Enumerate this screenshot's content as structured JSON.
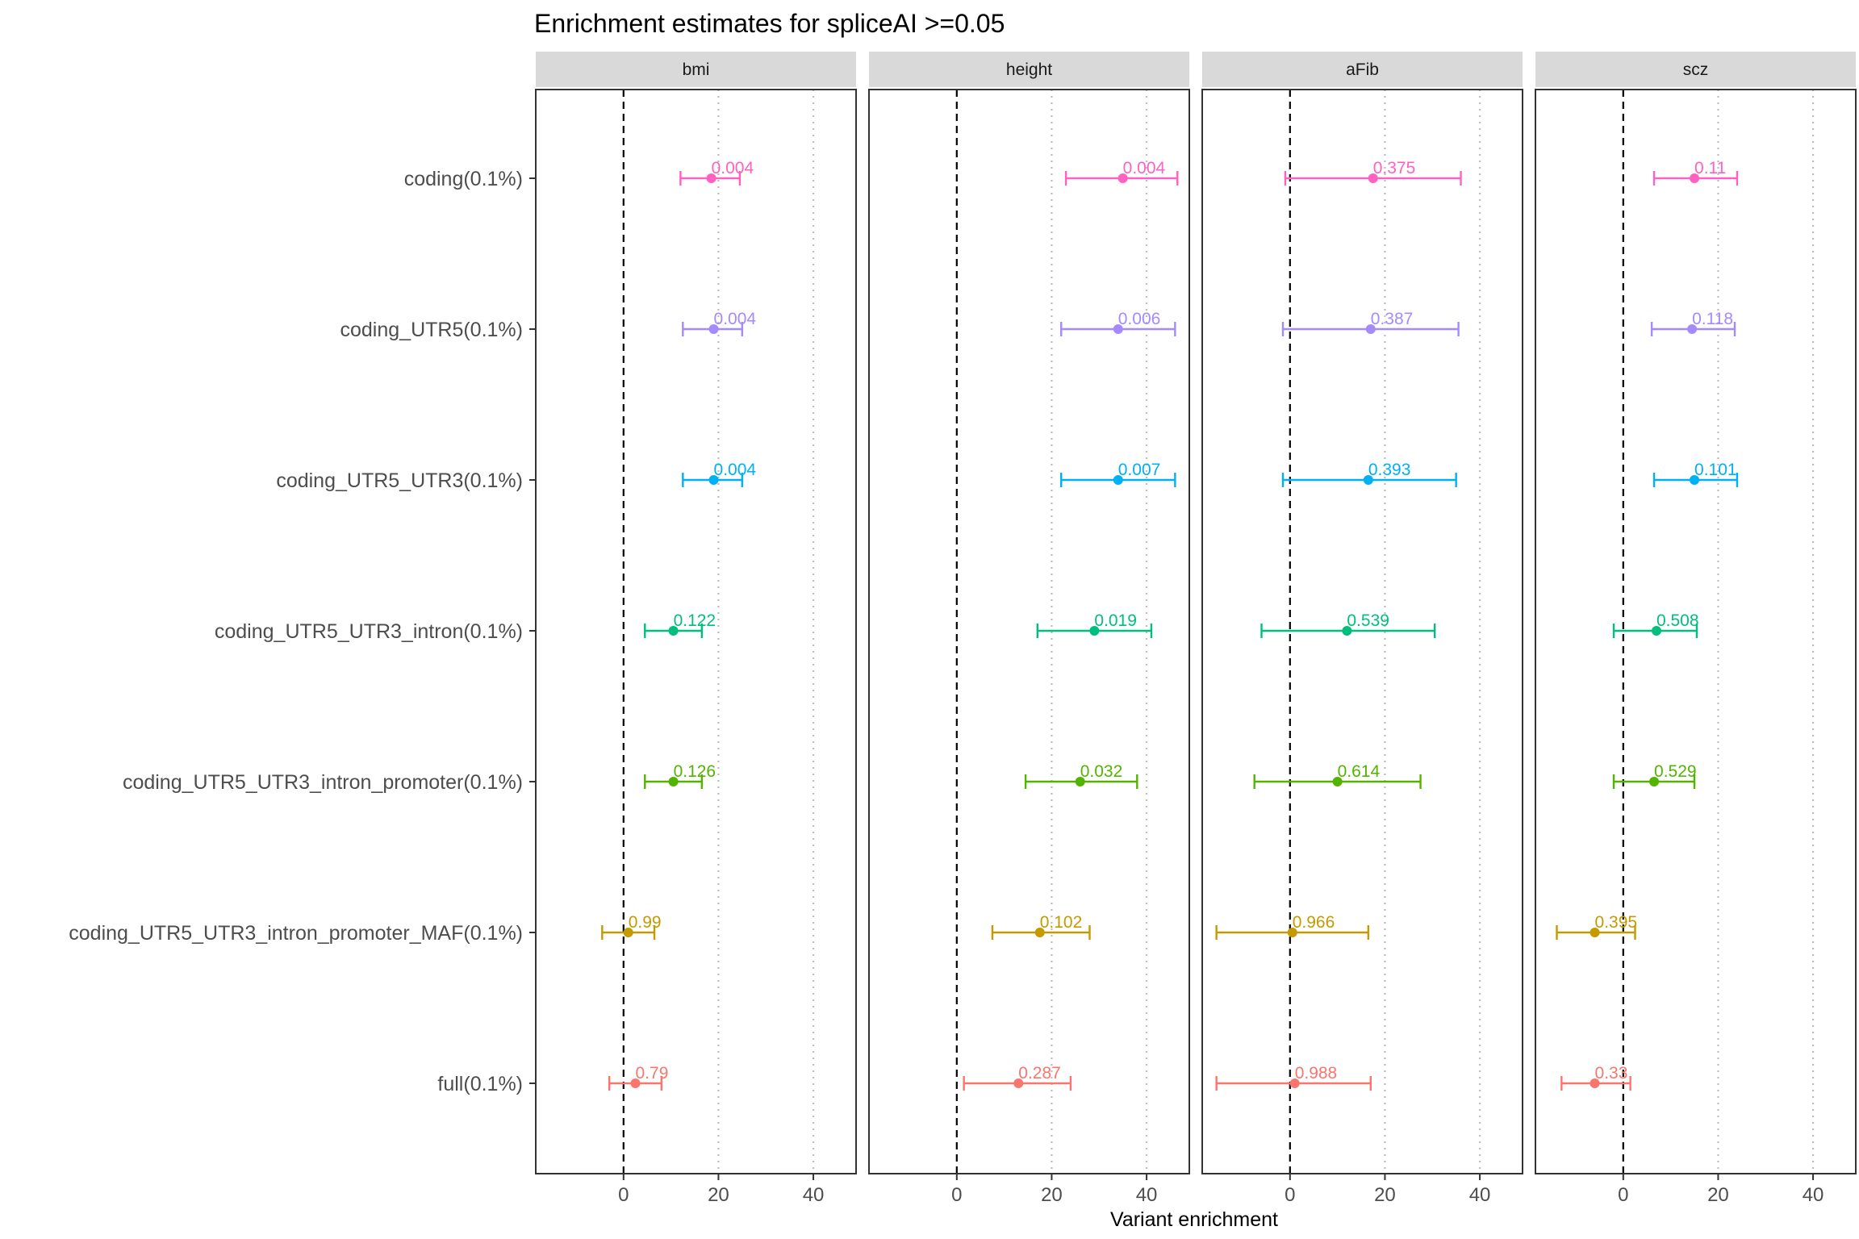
{
  "chart_data": {
    "type": "scatter",
    "title": "Enrichment estimates for spliceAI >=0.05",
    "xlabel": "Variant enrichment",
    "ylabel": "",
    "xlim": [
      -18.5,
      49
    ],
    "xticks": [
      0,
      20,
      40
    ],
    "panels": [
      "bmi",
      "height",
      "aFib",
      "scz"
    ],
    "categories": [
      "coding(0.1%)",
      "coding_UTR5(0.1%)",
      "coding_UTR5_UTR3(0.1%)",
      "coding_UTR5_UTR3_intron(0.1%)",
      "coding_UTR5_UTR3_intron_promoter(0.1%)",
      "coding_UTR5_UTR3_intron_promoter_MAF(0.1%)",
      "full(0.1%)"
    ],
    "colors": [
      "#FF61C3",
      "#A58AFF",
      "#00B0F6",
      "#00BF7D",
      "#53B400",
      "#C49A00",
      "#F8766D"
    ],
    "series": [
      {
        "name": "bmi",
        "estimate": [
          18.5,
          19,
          19,
          10.5,
          10.5,
          1,
          2.5
        ],
        "lower": [
          12,
          12.5,
          12.5,
          4.5,
          4.5,
          -4.5,
          -3
        ],
        "upper": [
          24.5,
          25,
          25,
          16.5,
          16.5,
          6.5,
          8
        ],
        "labels": [
          "0.004",
          "0.004",
          "0.004",
          "0.122",
          "0.126",
          "0.99",
          "0.79"
        ]
      },
      {
        "name": "height",
        "estimate": [
          35,
          34,
          34,
          29,
          26,
          17.5,
          13
        ],
        "lower": [
          23,
          22,
          22,
          17,
          14.5,
          7.5,
          1.5
        ],
        "upper": [
          46.5,
          46,
          46,
          41,
          38,
          28,
          24
        ],
        "labels": [
          "0.004",
          "0.006",
          "0.007",
          "0.019",
          "0.032",
          "0.102",
          "0.287"
        ]
      },
      {
        "name": "aFib",
        "estimate": [
          17.5,
          17,
          16.5,
          12,
          10,
          0.5,
          1
        ],
        "lower": [
          -1,
          -1.5,
          -1.5,
          -6,
          -7.5,
          -15.5,
          -15.5
        ],
        "upper": [
          36,
          35.5,
          35,
          30.5,
          27.5,
          16.5,
          17
        ],
        "labels": [
          "0.375",
          "0.387",
          "0.393",
          "0.539",
          "0.614",
          "0.966",
          "0.988"
        ]
      },
      {
        "name": "scz",
        "estimate": [
          15,
          14.5,
          15,
          7,
          6.5,
          -6,
          -6
        ],
        "lower": [
          6.5,
          6,
          6.5,
          -2,
          -2,
          -14,
          -13
        ],
        "upper": [
          24,
          23.5,
          24,
          15.5,
          15,
          2.5,
          1.5
        ],
        "labels": [
          "0.11",
          "0.118",
          "0.101",
          "0.508",
          "0.529",
          "0.395",
          "0.33"
        ]
      }
    ]
  }
}
